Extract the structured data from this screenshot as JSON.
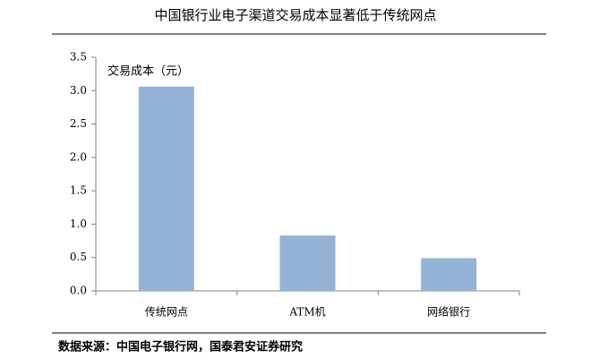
{
  "chart_data": {
    "type": "bar",
    "title": "中国银行业电子渠道交易成本显著低于传统网点",
    "y_label": "交易成本（元）",
    "categories": [
      "传统网点",
      "ATM机",
      "网络银行"
    ],
    "values": [
      3.06,
      0.83,
      0.49
    ],
    "color": "#95b3d7",
    "ylim": [
      0,
      3.5
    ],
    "yticks": [
      {
        "value": 0,
        "label": "0.0"
      },
      0.5,
      {
        "value": 1,
        "label": "1.0"
      },
      1.5,
      {
        "value": 2,
        "label": "2.0"
      },
      2.5,
      {
        "value": 3,
        "label": "3.0"
      },
      3.5
    ],
    "source": "数据来源：中国电子银行网，国泰君安证券研究"
  }
}
